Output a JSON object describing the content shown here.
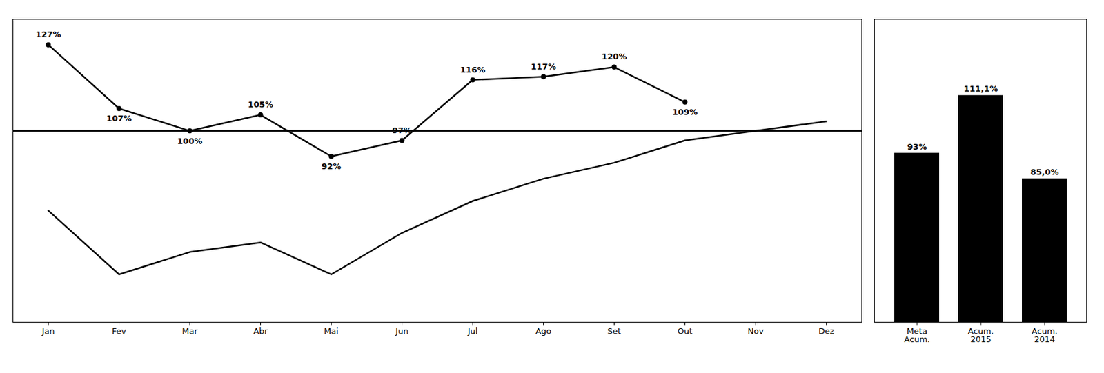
{
  "chart_data": [
    {
      "type": "line",
      "categories": [
        "Jan",
        "Fev",
        "Mar",
        "Abr",
        "Mai",
        "Jun",
        "Jul",
        "Ago",
        "Set",
        "Out",
        "Nov",
        "Dez"
      ],
      "series": [
        {
          "values": [
            127,
            107,
            100,
            105,
            92,
            97,
            116,
            117,
            120,
            109,
            null,
            null
          ],
          "value_labels": [
            "127%",
            "107%",
            "100%",
            "105%",
            "92%",
            "97%",
            "116%",
            "117%",
            "120%",
            "109%",
            null,
            null
          ],
          "marker": "o"
        },
        {
          "values": [
            75,
            55,
            62,
            65,
            55,
            68,
            78,
            85,
            90,
            97,
            100,
            103
          ]
        }
      ],
      "reference_line": 100,
      "data_labels": true,
      "ylim": [
        40,
        135
      ],
      "tick_labels": "x"
    },
    {
      "type": "bar",
      "categories": [
        "Meta\nAcum.",
        "Acum.\n2015",
        "Acum.\n2014"
      ],
      "values": [
        93,
        111.1,
        85.0
      ],
      "value_labels": [
        "93%",
        "111,1%",
        "85,0%"
      ],
      "data_labels": true,
      "ylim": [
        40,
        135
      ],
      "tick_labels": "x"
    }
  ]
}
